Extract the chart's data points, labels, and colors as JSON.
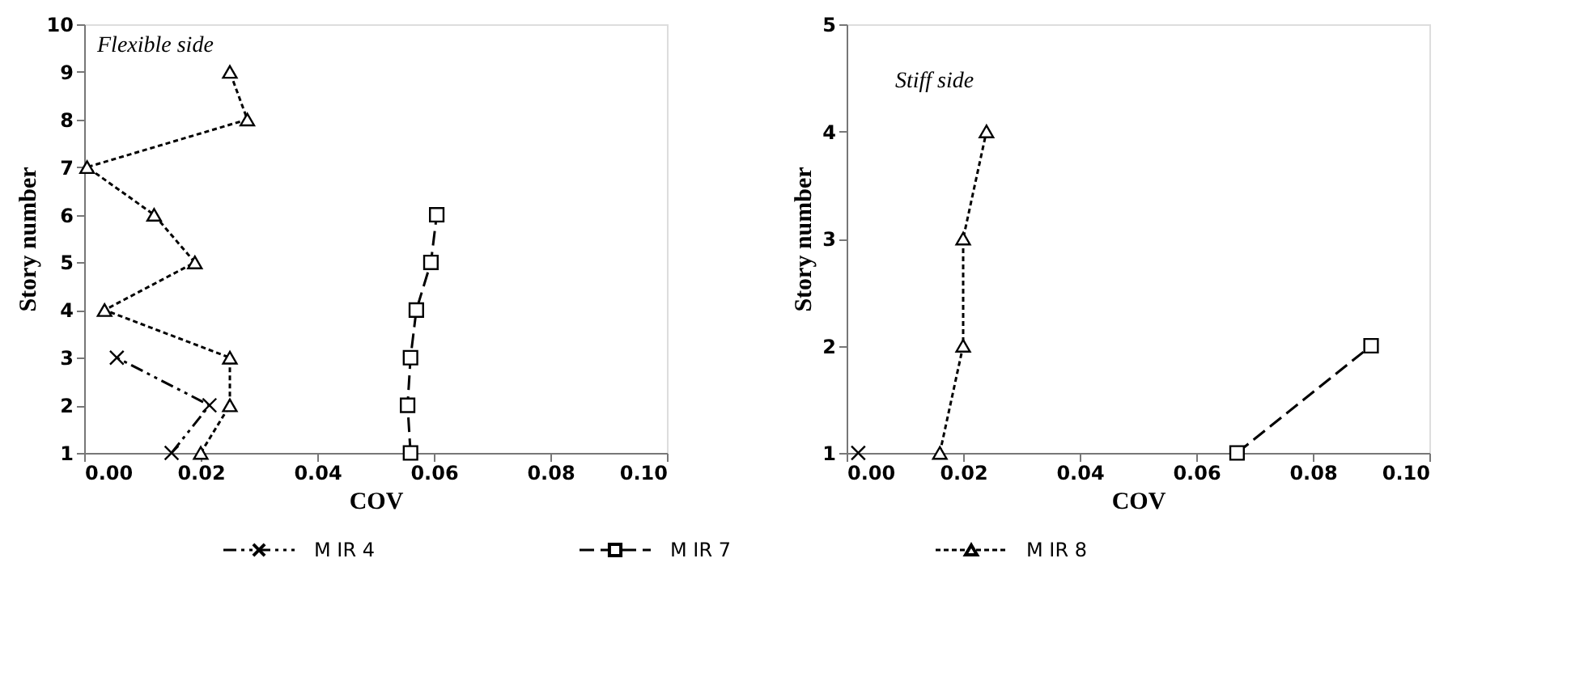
{
  "chart_data": [
    {
      "type": "line",
      "xlabel": "COV",
      "ylabel": "Story number",
      "annotations": [
        "Flexible side"
      ],
      "xlim": [
        0,
        0.1
      ],
      "xticks": [
        {
          "value": 0,
          "label": "0.00"
        },
        {
          "value": 0.02,
          "label": "0.02"
        },
        {
          "value": 0.04,
          "label": "0.04"
        },
        {
          "value": 0.06,
          "label": "0.06"
        },
        {
          "value": 0.08,
          "label": "0.08"
        },
        {
          "value": 0.1,
          "label": "0.10"
        }
      ],
      "ylim": [
        1,
        10
      ],
      "yticks": [
        1,
        2,
        3,
        4,
        5,
        6,
        7,
        8,
        9,
        10
      ],
      "grid": false,
      "legend": "bottom",
      "series": [
        {
          "name": "M IR 4",
          "color": "#000000",
          "marker": "cross",
          "line_style": "dashdot",
          "x": [
            0.015,
            0.0215,
            0.0056
          ],
          "values": [
            1,
            2,
            3
          ]
        },
        {
          "name": "M IR 7",
          "color": "#000000",
          "marker": "square",
          "line_style": "dashed",
          "x": [
            0.056,
            0.0555,
            0.056,
            0.057,
            0.0595,
            0.0605
          ],
          "values": [
            1,
            2,
            3,
            4,
            5,
            6
          ]
        },
        {
          "name": "M IR 8",
          "color": "#000000",
          "marker": "triangle",
          "line_style": "dotted",
          "x": [
            0.02,
            0.025,
            0.025,
            0.0035,
            0.019,
            0.012,
            0.0005,
            0.028,
            0.025
          ],
          "values": [
            1,
            2,
            3,
            4,
            5,
            6,
            7,
            8,
            9
          ]
        }
      ]
    },
    {
      "type": "line",
      "xlabel": "COV",
      "ylabel": "Story number",
      "annotations": [
        "Stiff side"
      ],
      "xlim": [
        0,
        0.1
      ],
      "xticks": [
        {
          "value": 0,
          "label": "0.00"
        },
        {
          "value": 0.02,
          "label": "0.02"
        },
        {
          "value": 0.04,
          "label": "0.04"
        },
        {
          "value": 0.06,
          "label": "0.06"
        },
        {
          "value": 0.08,
          "label": "0.08"
        },
        {
          "value": 0.1,
          "label": "0.10"
        }
      ],
      "ylim": [
        1,
        5
      ],
      "yticks": [
        1,
        2,
        3,
        4,
        5
      ],
      "grid": false,
      "legend": "bottom",
      "series": [
        {
          "name": "M IR 4",
          "color": "#000000",
          "marker": "cross",
          "line_style": "dashdot",
          "x": [
            0.002
          ],
          "values": [
            1
          ]
        },
        {
          "name": "M IR 7",
          "color": "#000000",
          "marker": "square",
          "line_style": "dashed",
          "x": [
            0.067,
            0.09
          ],
          "values": [
            1,
            2
          ]
        },
        {
          "name": "M IR 8",
          "color": "#000000",
          "marker": "triangle",
          "line_style": "dotted",
          "x": [
            0.016,
            0.02,
            0.02,
            0.024
          ],
          "values": [
            1,
            2,
            3,
            4
          ]
        }
      ]
    }
  ]
}
